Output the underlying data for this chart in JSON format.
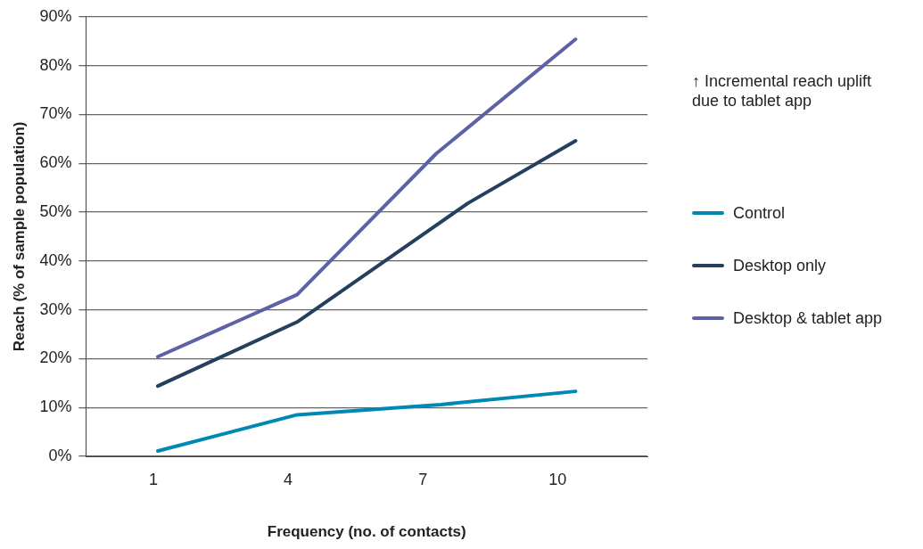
{
  "chart_data": {
    "type": "line",
    "xlabel": "Frequency (no. of contacts)",
    "ylabel": "Reach (% of sample population)",
    "annotations": [
      "↑ Incremental reach uplift due to tablet app"
    ],
    "xlim": [
      -0.5,
      12
    ],
    "xticks": [
      1,
      4,
      7,
      10
    ],
    "ylim": [
      0,
      90
    ],
    "yticks": [
      {
        "value": 0,
        "label": "0%"
      },
      {
        "value": 10,
        "label": "10%"
      },
      {
        "value": 20,
        "label": "20%"
      },
      {
        "value": 30,
        "label": "30%"
      },
      {
        "value": 40,
        "label": "40%"
      },
      {
        "value": 50,
        "label": "50%"
      },
      {
        "value": 60,
        "label": "60%"
      },
      {
        "value": 70,
        "label": "70%"
      },
      {
        "value": 80,
        "label": "80%"
      },
      {
        "value": 90,
        "label": "90%"
      }
    ],
    "grid": "y",
    "legend": "right",
    "marker": "none",
    "line_style": "solid",
    "series": [
      {
        "name": "Control",
        "color": "#0088b5",
        "x": [
          1.1,
          4.2,
          7.4,
          10.4
        ],
        "values": [
          1.1,
          8.5,
          10.6,
          13.3
        ]
      },
      {
        "name": "Desktop only",
        "color": "#24405e",
        "x": [
          1.1,
          4.2,
          8.0,
          10.4
        ],
        "values": [
          14.4,
          27.5,
          51.8,
          64.6
        ]
      },
      {
        "name": "Desktop & tablet app",
        "color": "#5d62a6",
        "x": [
          1.1,
          4.2,
          7.3,
          10.4
        ],
        "values": [
          20.4,
          33.1,
          62.0,
          85.4
        ]
      }
    ]
  }
}
